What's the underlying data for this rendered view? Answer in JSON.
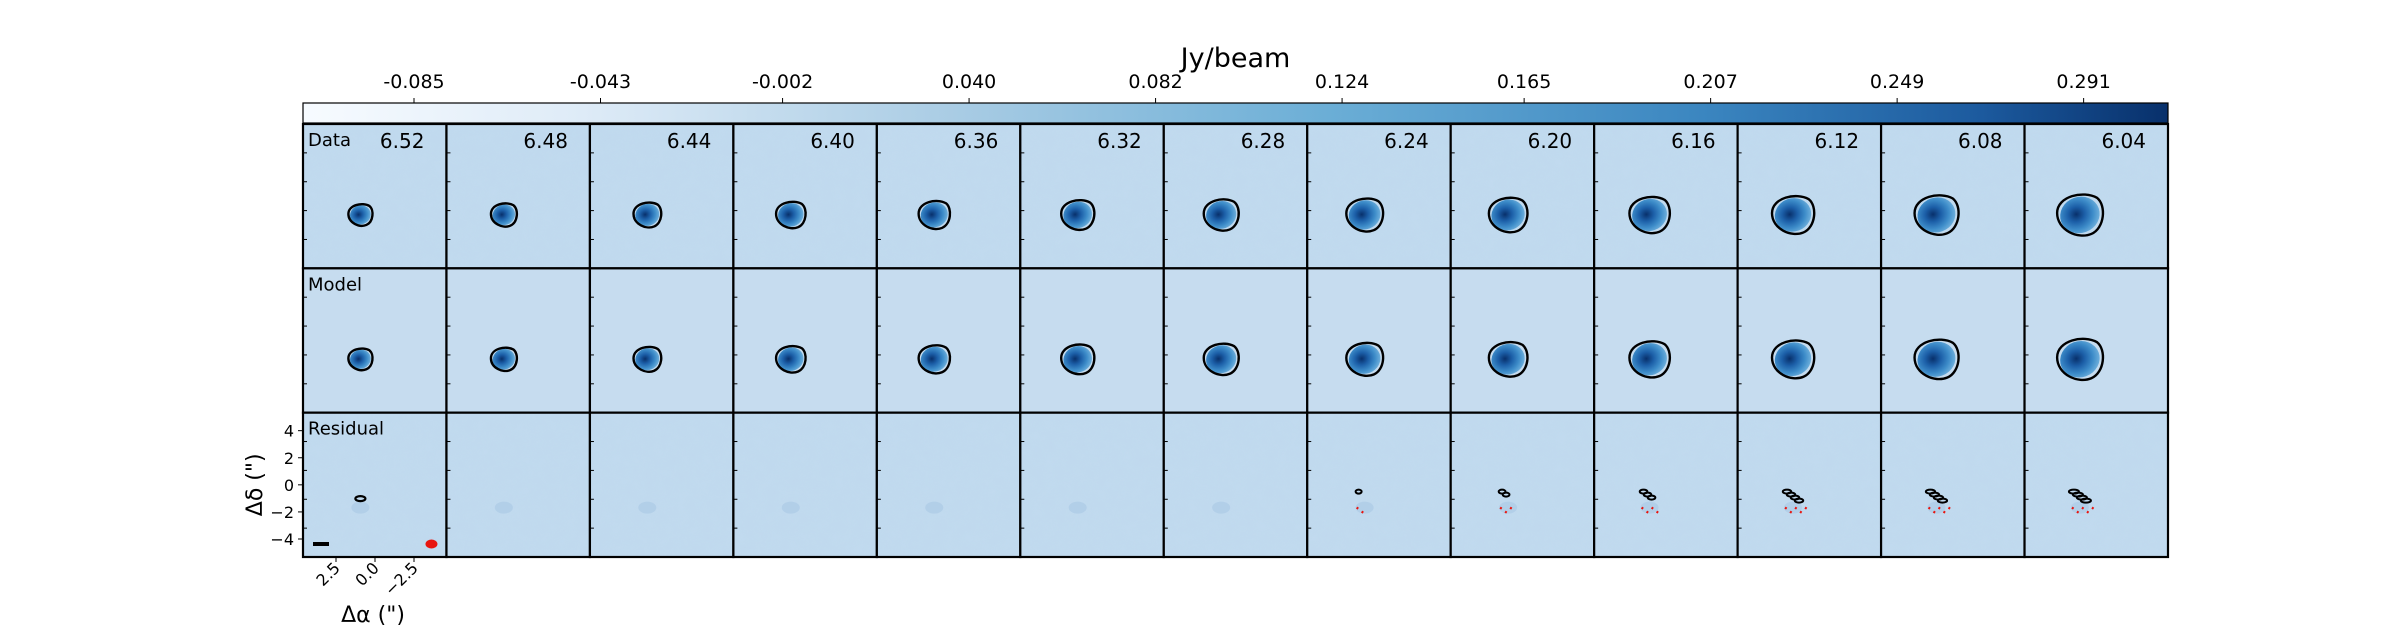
{
  "chart_data": {
    "type": "heatmap",
    "title": "",
    "colorbar": {
      "label": "Jy/beam",
      "ticks": [
        "-0.085",
        "-0.043",
        "-0.002",
        "0.040",
        "0.082",
        "0.124",
        "0.165",
        "0.207",
        "0.249",
        "0.291"
      ],
      "range": [
        -0.11,
        0.31
      ],
      "colormap": "Blues"
    },
    "channels": [
      "6.52",
      "6.48",
      "6.44",
      "6.40",
      "6.36",
      "6.32",
      "6.28",
      "6.24",
      "6.20",
      "6.16",
      "6.12",
      "6.08",
      "6.04"
    ],
    "rows": [
      "Data",
      "Model",
      "Residual"
    ],
    "xlabel": "Δα (\")",
    "ylabel": "Δδ (\")",
    "xticks": [
      "2.5",
      "0.0",
      "−2.5"
    ],
    "yticks": [
      "4",
      "2",
      "0",
      "−2",
      "−4"
    ],
    "beam_color": "#e8150f"
  }
}
